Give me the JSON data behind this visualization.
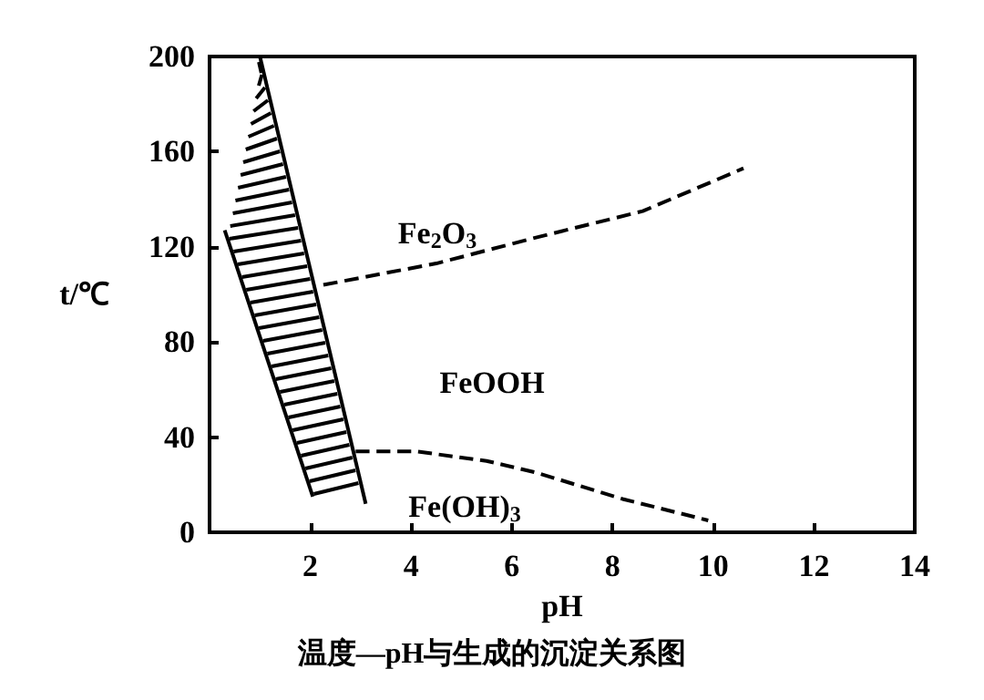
{
  "chart_data": {
    "type": "line",
    "title": "温度—pH与生成的沉淀关系图",
    "xlabel": "pH",
    "ylabel": "t/℃",
    "xlim": [
      0,
      14
    ],
    "xticks": [
      2,
      4,
      6,
      8,
      10,
      12,
      14
    ],
    "ylim": [
      0,
      200
    ],
    "yticks": [
      0,
      40,
      80,
      120,
      160,
      200
    ],
    "grid": false,
    "marker": "none",
    "series": [
      {
        "color": "#000000",
        "line_style": "solid",
        "x": [
          1.0,
          3.1
        ],
        "values": [
          200,
          12
        ]
      },
      {
        "color": "#000000",
        "line_style": "solid",
        "x": [
          0.3,
          2.05
        ],
        "values": [
          127,
          15
        ]
      },
      {
        "color": "#000000",
        "line_style": "dashed",
        "x": [
          2.26,
          3.0,
          4.5,
          6.5,
          8.6,
          10.6
        ],
        "values": [
          104,
          107,
          113,
          124,
          135,
          153
        ]
      },
      {
        "color": "#000000",
        "line_style": "dashed",
        "x": [
          2.9,
          4.1,
          5.5,
          6.5,
          8.2,
          9.9
        ],
        "values": [
          34,
          34,
          30,
          25,
          14,
          5
        ]
      }
    ],
    "annotations": [
      "Fe$_{2}$O$_{3}$",
      "FeOOH",
      "Fe(OH)$_{3}$"
    ]
  }
}
